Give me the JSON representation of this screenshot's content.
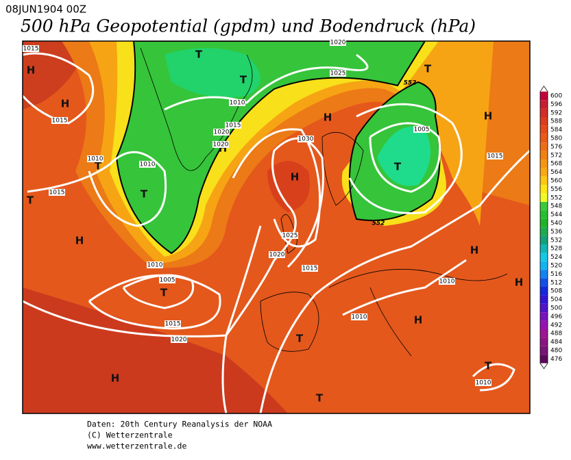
{
  "header": {
    "date": "08JUN1904 00Z",
    "title": "500 hPa Geopotential (gpdm) und Bodendruck (hPa)"
  },
  "map": {
    "pressure_centers": [
      "H",
      "H",
      "T",
      "T",
      "H",
      "T",
      "H",
      "T",
      "T",
      "T",
      "H",
      "H",
      "T",
      "H",
      "H",
      "H",
      "T",
      "H",
      "T",
      "H",
      "T",
      "T"
    ],
    "isobar_labels": [
      1015,
      1020,
      1025,
      1010,
      1015,
      1015,
      1020,
      1020,
      1030,
      1005,
      1015,
      1010,
      1010,
      1015,
      1025,
      1020,
      1015,
      1010,
      1005,
      1010,
      1010,
      1015,
      1020,
      1010
    ],
    "contour_labels": [
      552,
      552
    ]
  },
  "colorbar": {
    "levels": [
      600,
      596,
      592,
      588,
      584,
      580,
      576,
      572,
      568,
      564,
      560,
      556,
      552,
      548,
      544,
      540,
      536,
      532,
      528,
      524,
      520,
      516,
      512,
      508,
      504,
      500,
      496,
      492,
      488,
      484,
      480,
      476
    ],
    "colors": [
      "#c0003c",
      "#c81e32",
      "#d22d28",
      "#dc3c1e",
      "#e44b1a",
      "#e85a18",
      "#ec6e14",
      "#f08214",
      "#f49614",
      "#f8aa14",
      "#fcc814",
      "#fce614",
      "#f0fa28",
      "#3cc83c",
      "#28be32",
      "#1eb428",
      "#1eaa50",
      "#14a078",
      "#14b4b4",
      "#14c8e6",
      "#14b4f0",
      "#1482f0",
      "#1450e6",
      "#1428dc",
      "#3214d2",
      "#5014c8",
      "#7814be",
      "#9614b4",
      "#a01496",
      "#8c1482",
      "#781478",
      "#5a0a5a"
    ]
  },
  "footer": [
    "Daten: 20th Century Reanalysis der NOAA",
    "(C) Wetterzentrale",
    "www.wetterzentrale.de"
  ]
}
